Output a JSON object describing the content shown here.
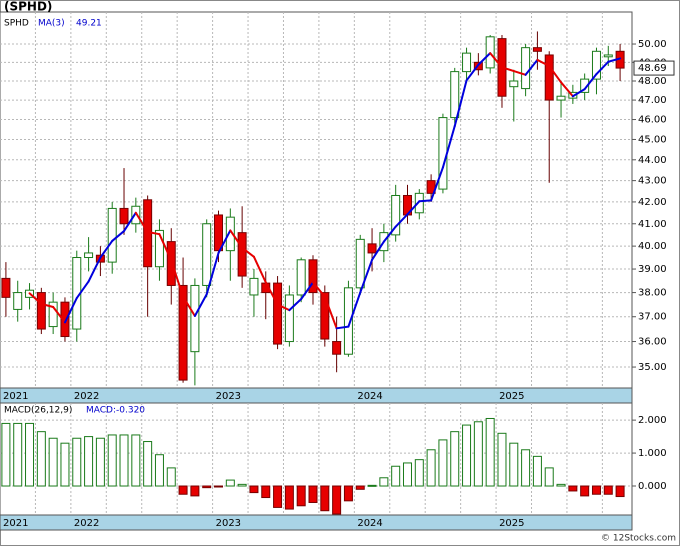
{
  "chart_data": [
    {
      "type": "candlestick",
      "title": "(SPHD)",
      "name": "SPHD",
      "categories": [
        "2021",
        null,
        null,
        null,
        null,
        null,
        "2022",
        null,
        null,
        null,
        null,
        null,
        null,
        null,
        null,
        null,
        null,
        null,
        "2023",
        null,
        null,
        null,
        null,
        null,
        null,
        null,
        null,
        null,
        null,
        null,
        "2024",
        null,
        null,
        null,
        null,
        null,
        null,
        null,
        null,
        null,
        null,
        null,
        "2025",
        null,
        null,
        null,
        null,
        null,
        null,
        null,
        null,
        null,
        null
      ],
      "open": [
        38.6,
        37.3,
        37.8,
        38.0,
        36.6,
        37.6,
        36.5,
        39.5,
        39.6,
        39.3,
        41.7,
        41.0,
        42.1,
        39.1,
        40.2,
        38.3,
        35.6,
        38.3,
        41.4,
        39.8,
        40.6,
        37.9,
        38.4,
        38.4,
        36.0,
        37.9,
        39.4,
        38.0,
        36.0,
        35.5,
        38.2,
        40.1,
        39.8,
        40.5,
        42.3,
        41.5,
        43.0,
        42.6,
        46.1,
        48.5,
        49.0,
        48.7,
        50.3,
        47.7,
        47.6,
        49.8,
        49.4,
        47.0,
        47.1,
        47.4,
        48.1,
        49.3,
        49.6
      ],
      "high": [
        39.3,
        38.5,
        38.4,
        38.2,
        38.0,
        37.8,
        39.8,
        40.4,
        40.0,
        42.0,
        43.6,
        42.2,
        42.3,
        41.2,
        40.8,
        39.5,
        38.6,
        41.2,
        41.6,
        41.7,
        41.8,
        39.0,
        38.9,
        38.7,
        38.3,
        39.5,
        39.6,
        38.3,
        37.0,
        38.5,
        40.5,
        40.8,
        41.0,
        42.8,
        42.8,
        42.6,
        43.3,
        46.3,
        48.7,
        49.8,
        49.5,
        50.5,
        50.5,
        48.6,
        50.0,
        50.7,
        49.6,
        47.9,
        47.8,
        48.4,
        49.8,
        49.9,
        50.0
      ],
      "low": [
        37.0,
        36.8,
        37.3,
        36.3,
        36.3,
        36.0,
        36.0,
        38.9,
        38.7,
        38.8,
        40.5,
        40.6,
        37.0,
        38.5,
        37.5,
        34.4,
        34.3,
        37.8,
        39.3,
        38.5,
        38.2,
        37.0,
        36.9,
        35.7,
        35.8,
        37.6,
        37.5,
        35.8,
        34.8,
        35.4,
        37.9,
        38.9,
        39.3,
        40.2,
        41.0,
        41.2,
        42.0,
        42.4,
        45.8,
        47.9,
        48.3,
        48.4,
        46.6,
        45.9,
        47.2,
        48.6,
        42.9,
        46.1,
        46.8,
        47.0,
        47.3,
        48.8,
        48.0
      ],
      "close": [
        37.8,
        38.0,
        38.1,
        36.5,
        37.6,
        36.2,
        39.5,
        39.7,
        39.3,
        41.7,
        41.0,
        41.8,
        39.1,
        40.7,
        38.3,
        34.5,
        38.3,
        41.0,
        39.8,
        41.3,
        38.7,
        38.6,
        38.0,
        35.9,
        37.9,
        39.4,
        38.0,
        36.1,
        35.5,
        38.2,
        40.3,
        39.7,
        40.6,
        42.3,
        41.4,
        42.4,
        42.4,
        46.1,
        48.5,
        49.5,
        48.6,
        50.4,
        47.2,
        48.0,
        49.8,
        49.6,
        47.0,
        47.2,
        47.4,
        48.1,
        49.6,
        49.4,
        48.69
      ],
      "up_color": "#1a7a1a",
      "down_color": "#e60000",
      "series": [
        {
          "name": "MA(3)",
          "up_color": "#0000dd",
          "down_color": "#e60000",
          "values": [
            null,
            null,
            37.97,
            37.53,
            37.4,
            36.77,
            37.77,
            38.47,
            39.5,
            40.23,
            40.67,
            41.5,
            40.63,
            40.53,
            39.37,
            37.83,
            37.03,
            37.93,
            39.7,
            40.7,
            39.93,
            39.53,
            38.43,
            37.5,
            37.27,
            37.73,
            38.43,
            37.83,
            36.53,
            36.6,
            38.0,
            39.4,
            40.2,
            40.87,
            41.43,
            42.03,
            42.07,
            43.63,
            45.67,
            48.03,
            48.87,
            49.5,
            48.73,
            48.53,
            48.33,
            49.13,
            48.8,
            47.93,
            47.2,
            47.57,
            48.37,
            49.03,
            49.21
          ]
        }
      ],
      "log_scale": true,
      "ylim": [
        34.2,
        51.8
      ],
      "yticks": [
        {
          "value": 35,
          "label": "35.00"
        },
        {
          "value": 36,
          "label": "36.00"
        },
        {
          "value": 37,
          "label": "37.00"
        },
        {
          "value": 38,
          "label": "38.00"
        },
        {
          "value": 39,
          "label": "39.00"
        },
        {
          "value": 40,
          "label": "40.00"
        },
        {
          "value": 41,
          "label": "41.00"
        },
        {
          "value": 42,
          "label": "42.00"
        },
        {
          "value": 43,
          "label": "43.00"
        },
        {
          "value": 44,
          "label": "44.00"
        },
        {
          "value": 45,
          "label": "45.00"
        },
        {
          "value": 46,
          "label": "46.00"
        },
        {
          "value": 47,
          "label": "47.00"
        },
        {
          "value": 48,
          "label": "48.00"
        },
        {
          "value": 49,
          "label": "49.00"
        },
        {
          "value": 50,
          "label": "50.00"
        }
      ],
      "grid": true
    },
    {
      "type": "bar",
      "title": "MACD(26,12,9)",
      "value_label": "MACD:-0.320",
      "values": [
        1.9,
        1.9,
        1.9,
        1.65,
        1.45,
        1.3,
        1.45,
        1.5,
        1.45,
        1.55,
        1.55,
        1.55,
        1.35,
        0.95,
        0.55,
        -0.25,
        -0.3,
        -0.05,
        -0.03,
        0.18,
        0.05,
        -0.2,
        -0.35,
        -0.65,
        -0.7,
        -0.6,
        -0.5,
        -0.75,
        -0.85,
        -0.45,
        -0.1,
        0.02,
        0.25,
        0.6,
        0.7,
        0.8,
        1.1,
        1.4,
        1.65,
        1.85,
        1.95,
        2.05,
        1.6,
        1.3,
        1.1,
        0.9,
        0.55,
        0.05,
        -0.15,
        -0.3,
        -0.25,
        -0.25,
        -0.32
      ],
      "up_color": "#1a7a1a",
      "down_color": "#e60000",
      "ylim": [
        -0.88,
        2.52
      ],
      "yticks": [
        {
          "value": 0,
          "label": "0.000"
        },
        {
          "value": 1,
          "label": "1.000"
        },
        {
          "value": 2,
          "label": "2.000"
        }
      ],
      "grid": true
    }
  ],
  "footer": "© 12Stocks.com"
}
